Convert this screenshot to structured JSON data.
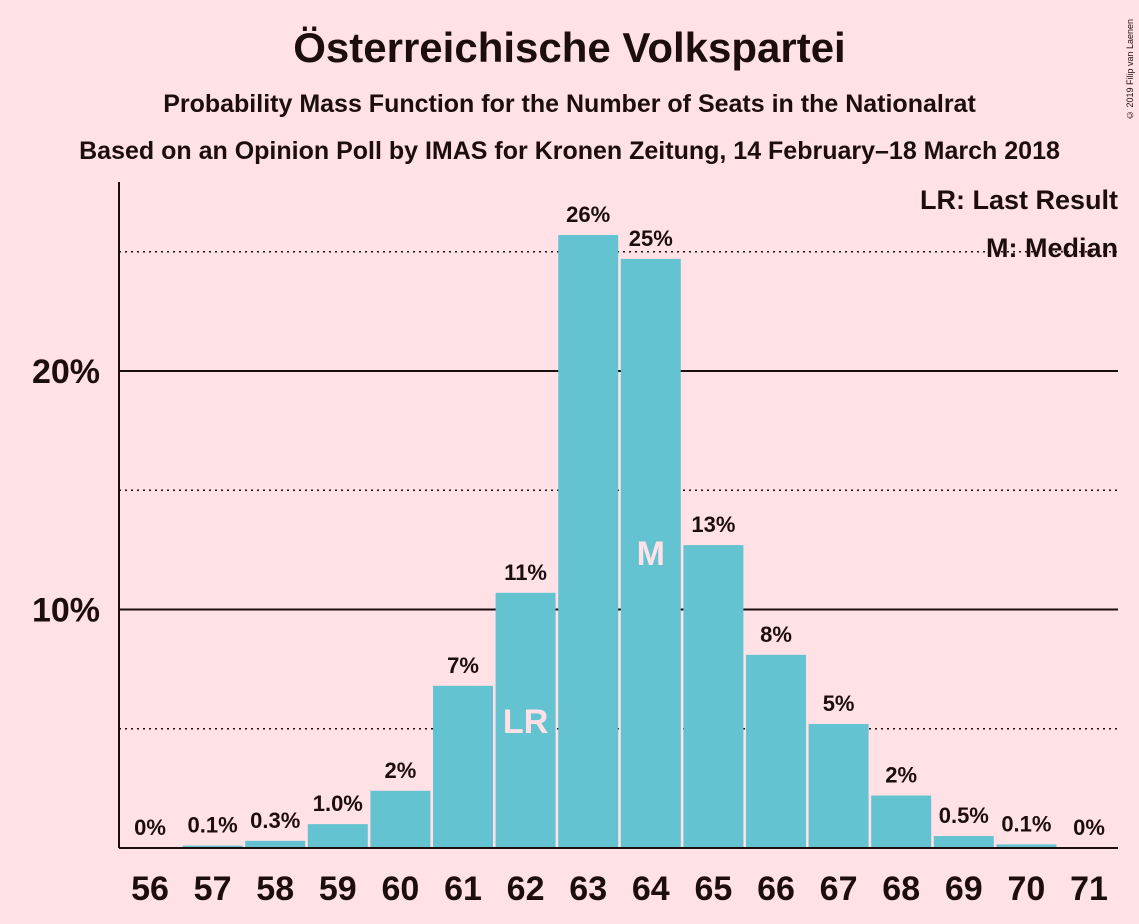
{
  "title": "Österreichische Volkspartei",
  "subtitle": "Probability Mass Function for the Number of Seats in the Nationalrat",
  "source": "Based on an Opinion Poll by IMAS for Kronen Zeitung, 14 February–18 March 2018",
  "copyright": "© 2019 Filip van Laenen",
  "legend": {
    "last_result": "LR: Last Result",
    "median": "M: Median"
  },
  "colors": {
    "background": "#ffe1e6",
    "bar": "#64c3d1",
    "text": "#1c0e0e"
  },
  "chart_data": {
    "type": "bar",
    "categories": [
      "56",
      "57",
      "58",
      "59",
      "60",
      "61",
      "62",
      "63",
      "64",
      "65",
      "66",
      "67",
      "68",
      "69",
      "70",
      "71"
    ],
    "values": [
      0,
      0.1,
      0.3,
      1.0,
      2.4,
      6.8,
      10.7,
      25.7,
      24.7,
      12.7,
      8.1,
      5.2,
      2.2,
      0.5,
      0.15,
      0
    ],
    "value_labels": [
      "0%",
      "0.1%",
      "0.3%",
      "1.0%",
      "2%",
      "7%",
      "11%",
      "26%",
      "25%",
      "13%",
      "8%",
      "5%",
      "2%",
      "0.5%",
      "0.1%",
      "0%"
    ],
    "ylim": [
      0,
      28
    ],
    "yticks": [
      {
        "value": 10,
        "label": "10%",
        "style": "solid"
      },
      {
        "value": 20,
        "label": "20%",
        "style": "solid"
      }
    ],
    "gridlines_dotted": [
      5,
      15,
      25
    ],
    "markers": [
      {
        "category": "62",
        "label": "LR"
      },
      {
        "category": "64",
        "label": "M"
      }
    ],
    "legend_position": "top-right"
  }
}
